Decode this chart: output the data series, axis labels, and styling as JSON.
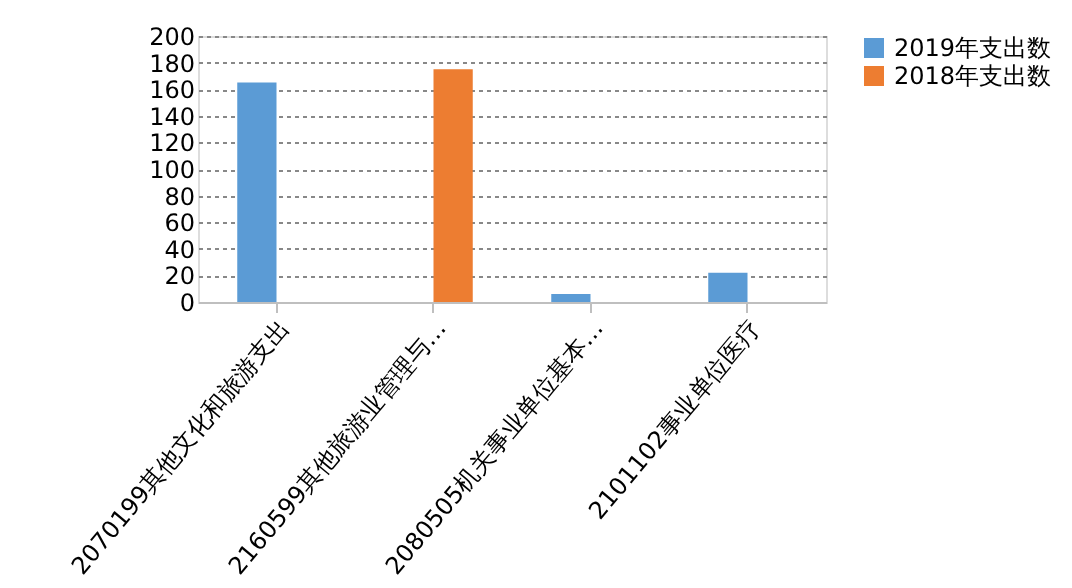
{
  "chart_data": {
    "type": "bar",
    "categories": [
      "2070199其他文化和旅游支出",
      "2160599其他旅游业管理与…",
      "2080505机关事业单位基本…",
      "2101102事业单位医疗"
    ],
    "series": [
      {
        "name": "2019年支出数",
        "color": "#5b9bd5",
        "values": [
          165,
          null,
          6,
          22
        ]
      },
      {
        "name": "2018年支出数",
        "color": "#ed7d31",
        "values": [
          null,
          175,
          null,
          null
        ]
      }
    ],
    "ylim": [
      0,
      200
    ],
    "yticks": [
      0,
      20,
      40,
      60,
      80,
      100,
      120,
      140,
      160,
      180,
      200
    ],
    "grid": "y",
    "legend": "right"
  }
}
